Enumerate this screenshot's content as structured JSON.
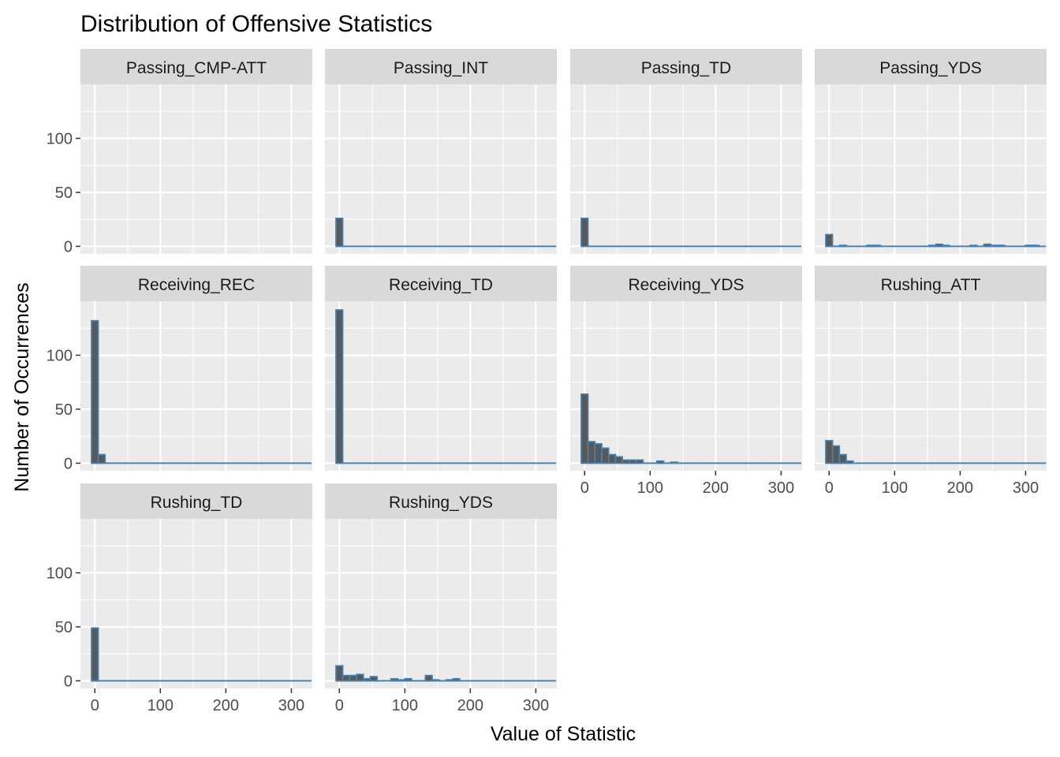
{
  "chart_data": {
    "type": "bar",
    "title": "Distribution of Offensive Statistics",
    "xlabel": "Value of Statistic",
    "ylabel": "Number of Occurrences",
    "xlim": [
      -22,
      332
    ],
    "ylim": [
      -7,
      150
    ],
    "x_ticks": [
      0,
      100,
      200,
      300
    ],
    "y_ticks": [
      0,
      50,
      100
    ],
    "bin_width": 10.5,
    "colors": {
      "bar_fill": "#595959",
      "bar_outline": "#4682b4",
      "panel_background": "#ebebeb",
      "strip_background": "#d9d9d9",
      "grid_major": "#ffffff"
    },
    "grid": true,
    "panels": [
      {
        "name": "Passing_CMP-ATT",
        "bins": []
      },
      {
        "name": "Passing_INT",
        "bins": [
          [
            0,
            26
          ]
        ]
      },
      {
        "name": "Passing_TD",
        "bins": [
          [
            0,
            26
          ]
        ]
      },
      {
        "name": "Passing_YDS",
        "bins": [
          [
            0,
            11
          ],
          [
            21,
            1
          ],
          [
            63,
            1
          ],
          [
            73.5,
            1
          ],
          [
            157.5,
            1
          ],
          [
            168,
            2
          ],
          [
            178.5,
            1
          ],
          [
            220.5,
            1
          ],
          [
            241.5,
            2
          ],
          [
            252,
            1
          ],
          [
            262.5,
            1
          ],
          [
            304.5,
            1
          ],
          [
            315,
            1
          ]
        ]
      },
      {
        "name": "Receiving_REC",
        "bins": [
          [
            0,
            132
          ],
          [
            10.5,
            8
          ]
        ]
      },
      {
        "name": "Receiving_TD",
        "bins": [
          [
            0,
            142
          ]
        ]
      },
      {
        "name": "Receiving_YDS",
        "bins": [
          [
            0,
            64
          ],
          [
            10.5,
            20
          ],
          [
            21,
            18
          ],
          [
            31.5,
            14
          ],
          [
            42,
            8
          ],
          [
            52.5,
            6
          ],
          [
            63,
            3
          ],
          [
            73.5,
            3
          ],
          [
            84,
            3
          ],
          [
            115.5,
            2
          ],
          [
            136.5,
            1
          ]
        ]
      },
      {
        "name": "Rushing_ATT",
        "bins": [
          [
            0,
            21
          ],
          [
            10.5,
            16
          ],
          [
            21,
            8
          ],
          [
            31.5,
            2
          ]
        ]
      },
      {
        "name": "Rushing_TD",
        "bins": [
          [
            0,
            49
          ]
        ]
      },
      {
        "name": "Rushing_YDS",
        "bins": [
          [
            0,
            14
          ],
          [
            10.5,
            5
          ],
          [
            21,
            5
          ],
          [
            31.5,
            6
          ],
          [
            42,
            2
          ],
          [
            52.5,
            4
          ],
          [
            84,
            2
          ],
          [
            94.5,
            1
          ],
          [
            105,
            2
          ],
          [
            136.5,
            5
          ],
          [
            147,
            1
          ],
          [
            168,
            1
          ],
          [
            178.5,
            2
          ]
        ]
      }
    ]
  }
}
